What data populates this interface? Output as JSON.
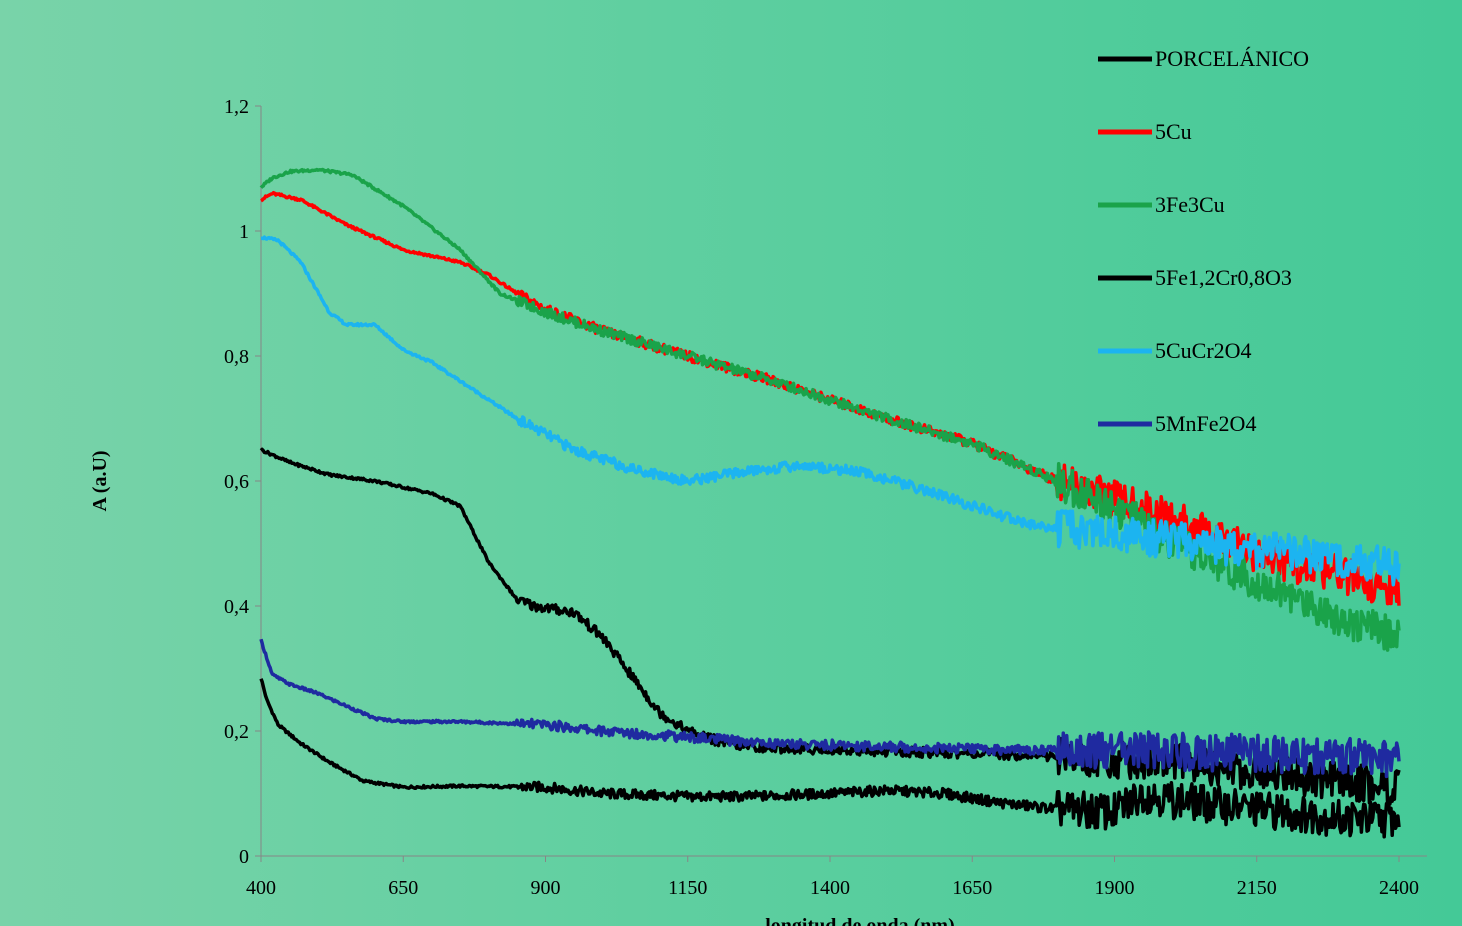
{
  "chart_data": {
    "type": "line",
    "xlabel": "longitud de onda (nm)",
    "ylabel": "A (a.U)",
    "xlim": [
      400,
      2400
    ],
    "ylim": [
      0,
      1.2
    ],
    "x_ticks": [
      "400",
      "650",
      "900",
      "1150",
      "1400",
      "1650",
      "1900",
      "2150",
      "2400"
    ],
    "y_ticks": [
      "0",
      "0,2",
      "0,4",
      "0,6",
      "0,8",
      "1",
      "1,2"
    ],
    "legend_position": "top-right",
    "grid": false,
    "series": [
      {
        "name": "PORCELÁNICO",
        "color": "#000000",
        "x": [
          400,
          410,
          430,
          470,
          520,
          580,
          650,
          750,
          900,
          1000,
          1150,
          1250,
          1400,
          1500,
          1600,
          1700,
          1800,
          1900,
          1950,
          2000,
          2100,
          2200,
          2300,
          2400
        ],
        "y": [
          0.285,
          0.25,
          0.21,
          0.18,
          0.15,
          0.12,
          0.11,
          0.112,
          0.11,
          0.1,
          0.095,
          0.095,
          0.1,
          0.105,
          0.1,
          0.085,
          0.075,
          0.07,
          0.1,
          0.09,
          0.08,
          0.07,
          0.06,
          0.06
        ]
      },
      {
        "name": "5Cu",
        "color": "#ff0000",
        "x": [
          400,
          420,
          470,
          550,
          650,
          750,
          800,
          850,
          900,
          1000,
          1150,
          1300,
          1400,
          1500,
          1650,
          1800,
          1900,
          2000,
          2100,
          2200,
          2300,
          2400
        ],
        "y": [
          1.05,
          1.06,
          1.05,
          1.01,
          0.97,
          0.95,
          0.93,
          0.9,
          0.875,
          0.84,
          0.8,
          0.76,
          0.73,
          0.7,
          0.66,
          0.6,
          0.57,
          0.54,
          0.5,
          0.47,
          0.45,
          0.42
        ]
      },
      {
        "name": "3Fe3Cu",
        "color": "#1aa34a",
        "x": [
          400,
          420,
          450,
          500,
          560,
          650,
          750,
          820,
          900,
          1000,
          1150,
          1300,
          1400,
          1500,
          1650,
          1800,
          1900,
          2000,
          2100,
          2200,
          2300,
          2400
        ],
        "y": [
          1.07,
          1.085,
          1.095,
          1.098,
          1.09,
          1.04,
          0.97,
          0.9,
          0.87,
          0.84,
          0.8,
          0.76,
          0.73,
          0.7,
          0.66,
          0.6,
          0.56,
          0.5,
          0.46,
          0.42,
          0.38,
          0.35
        ]
      },
      {
        "name": "5Fe1,2Cr0,8O3",
        "color": "#000000",
        "x": [
          400,
          450,
          520,
          600,
          650,
          700,
          750,
          800,
          850,
          880,
          950,
          1000,
          1050,
          1100,
          1150,
          1200,
          1250,
          1400,
          1600,
          1800,
          1900,
          2000,
          2100,
          2200,
          2300,
          2400
        ],
        "y": [
          0.65,
          0.63,
          0.61,
          0.6,
          0.59,
          0.58,
          0.56,
          0.47,
          0.41,
          0.4,
          0.39,
          0.35,
          0.29,
          0.23,
          0.2,
          0.185,
          0.175,
          0.17,
          0.165,
          0.16,
          0.155,
          0.15,
          0.14,
          0.13,
          0.12,
          0.11
        ]
      },
      {
        "name": "5CuCr2O4",
        "color": "#1cb4f0",
        "x": [
          400,
          430,
          470,
          520,
          550,
          600,
          650,
          700,
          750,
          850,
          950,
          1050,
          1150,
          1250,
          1350,
          1450,
          1550,
          1650,
          1750,
          1850,
          1950,
          2050,
          2150,
          2250,
          2350,
          2400
        ],
        "y": [
          0.99,
          0.985,
          0.95,
          0.87,
          0.85,
          0.85,
          0.81,
          0.79,
          0.76,
          0.7,
          0.65,
          0.62,
          0.6,
          0.615,
          0.625,
          0.615,
          0.59,
          0.56,
          0.53,
          0.52,
          0.51,
          0.5,
          0.49,
          0.48,
          0.47,
          0.46
        ]
      },
      {
        "name": "5MnFe2O4",
        "color": "#1f2aa0",
        "x": [
          400,
          420,
          450,
          500,
          550,
          600,
          650,
          750,
          900,
          1000,
          1150,
          1300,
          1500,
          1700,
          1900,
          2100,
          2300,
          2400
        ],
        "y": [
          0.345,
          0.29,
          0.275,
          0.26,
          0.24,
          0.22,
          0.215,
          0.215,
          0.21,
          0.2,
          0.19,
          0.18,
          0.175,
          0.17,
          0.17,
          0.165,
          0.16,
          0.155
        ]
      }
    ]
  }
}
